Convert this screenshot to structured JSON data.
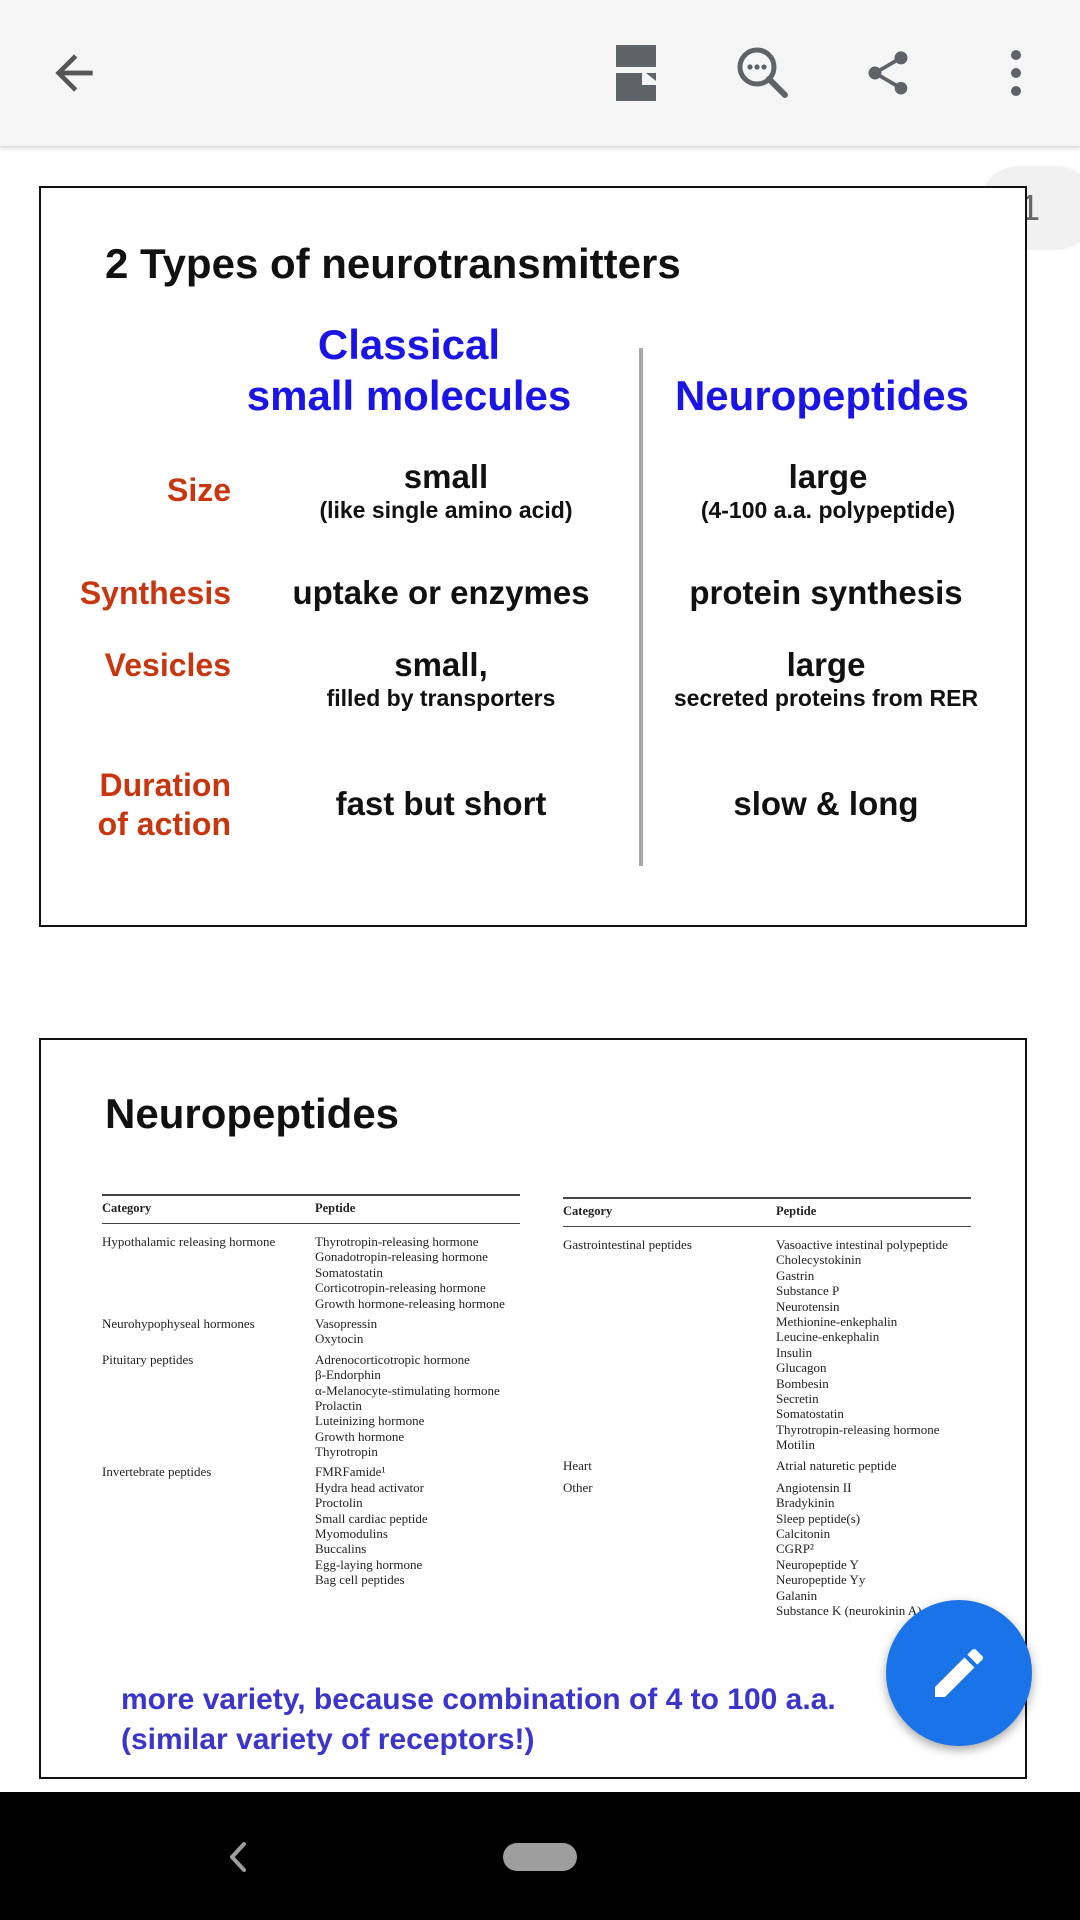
{
  "toolbar": {
    "back_icon": "arrow-back-icon",
    "outline_icon": "document-outline-icon",
    "search_icon": "search-icon",
    "share_icon": "share-icon",
    "more_icon": "more-vert-icon"
  },
  "page_number": "1",
  "slide1": {
    "title": "2 Types of neurotransmitters",
    "col1_line1": "Classical",
    "col1_line2": "small molecules",
    "col2": "Neuropeptides",
    "rows": [
      {
        "label": "Size",
        "c1_main": "small",
        "c1_sub": "(like single amino acid)",
        "c2_main": "large",
        "c2_sub": "(4-100 a.a. polypeptide)"
      },
      {
        "label": "Synthesis",
        "c1_main": "uptake or enzymes",
        "c2_main": "protein synthesis"
      },
      {
        "label": "Vesicles",
        "c1_main": "small,",
        "c1_sub": "filled by transporters",
        "c2_main": "large",
        "c2_sub": "secreted proteins from RER"
      },
      {
        "label_line1": "Duration",
        "label_line2": "of action",
        "c1_main": "fast but short",
        "c2_main": "slow & long"
      }
    ]
  },
  "slide2": {
    "title": "Neuropeptides",
    "left_table": {
      "header_category": "Category",
      "header_peptide": "Peptide",
      "groups": [
        {
          "category": "Hypothalamic releasing hormone",
          "peptides": [
            "Thyrotropin-releasing hormone",
            "Gonadotropin-releasing hormone",
            "Somatostatin",
            "Corticotropin-releasing hormone",
            "Growth hormone-releasing hormone"
          ]
        },
        {
          "category": "Neurohypophyseal hormones",
          "peptides": [
            "Vasopressin",
            "Oxytocin"
          ]
        },
        {
          "category": "Pituitary peptides",
          "peptides": [
            "Adrenocorticotropic hormone",
            "β-Endorphin",
            "α-Melanocyte-stimulating hormone",
            "Prolactin",
            "Luteinizing hormone",
            "Growth hormone",
            "Thyrotropin"
          ]
        },
        {
          "category": "Invertebrate peptides",
          "peptides": [
            "FMRFamide¹",
            "Hydra head activator",
            "Proctolin",
            "Small cardiac peptide",
            "Myomodulins",
            "Buccalins",
            "Egg-laying hormone",
            "Bag cell peptides"
          ]
        }
      ]
    },
    "right_table": {
      "header_category": "Category",
      "header_peptide": "Peptide",
      "groups": [
        {
          "category": "Gastrointestinal peptides",
          "peptides": [
            "Vasoactive intestinal polypeptide",
            "Cholecystokinin",
            "Gastrin",
            "Substance P",
            "Neurotensin",
            "Methionine-enkephalin",
            "Leucine-enkephalin",
            "Insulin",
            "Glucagon",
            "Bombesin",
            "Secretin",
            "Somatostatin",
            "Thyrotropin-releasing hormone",
            "Motilin"
          ]
        },
        {
          "category": "Heart",
          "peptides": [
            "Atrial naturetic peptide"
          ]
        },
        {
          "category": "Other",
          "peptides": [
            "Angiotensin II",
            "Bradykinin",
            "Sleep peptide(s)",
            "Calcitonin",
            "CGRP²",
            "Neuropeptide Y",
            "Neuropeptide Yy",
            "Galanin",
            "Substance K (neurokinin A)"
          ]
        }
      ]
    },
    "note_line1": "more variety, because combination of 4 to 100 a.a.",
    "note_line2": "(similar variety of receptors!)"
  },
  "fab_icon": "edit-pencil-icon",
  "system_nav": {
    "back_icon": "nav-back-icon",
    "home_pill": "home-pill"
  }
}
